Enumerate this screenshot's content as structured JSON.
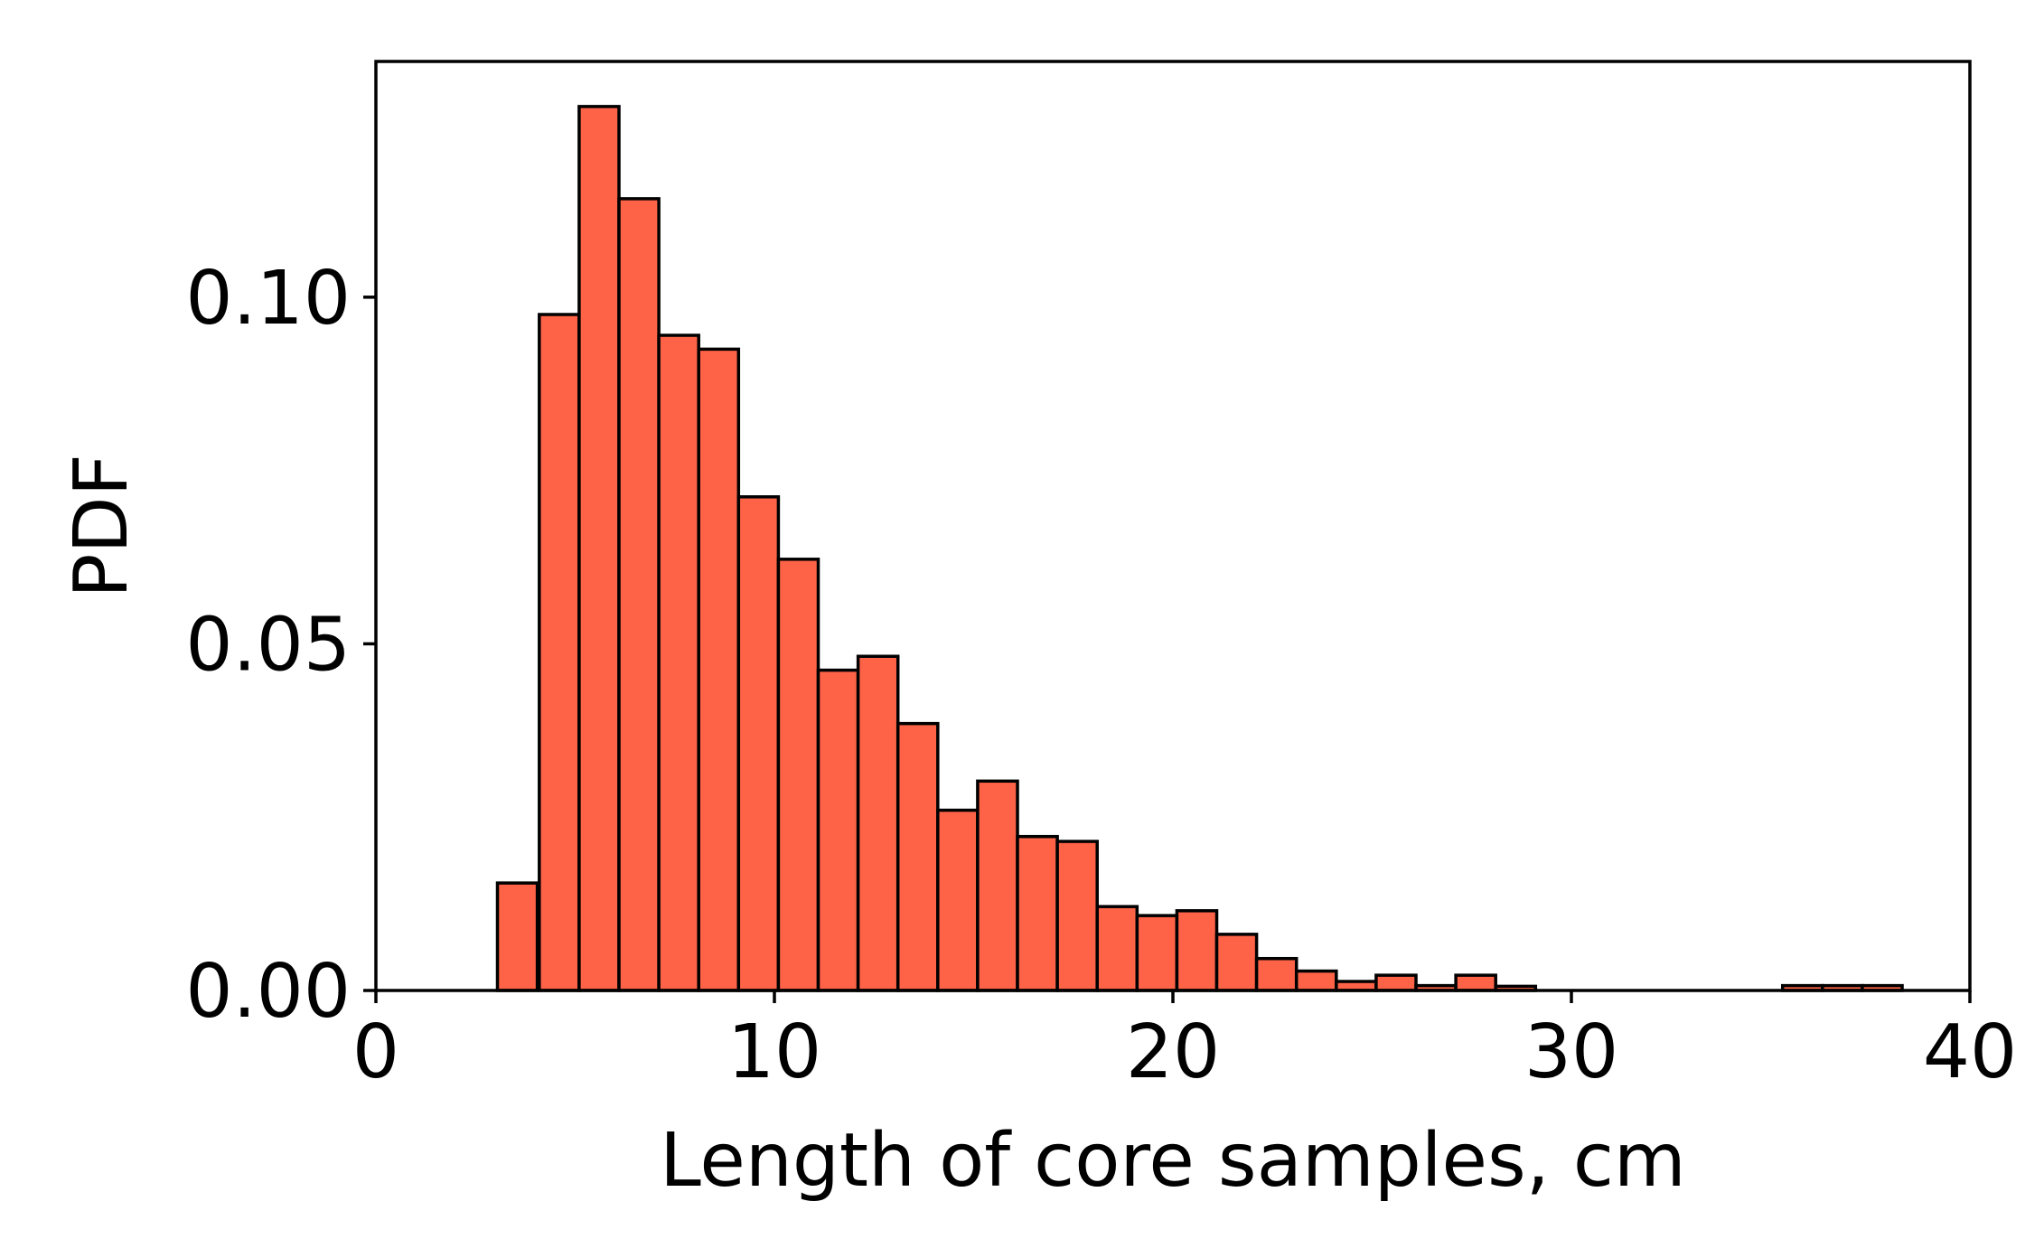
{
  "chart_data": {
    "type": "bar",
    "subtype": "histogram",
    "title": "",
    "xlabel": "Length of core samples, cm",
    "ylabel": "PDF",
    "xlim": [
      0,
      40
    ],
    "ylim": [
      0,
      0.134
    ],
    "xticks": [
      0,
      10,
      20,
      30,
      40
    ],
    "xtick_labels": [
      "0",
      "10",
      "20",
      "30",
      "40"
    ],
    "yticks": [
      0.0,
      0.05,
      0.1
    ],
    "ytick_labels": [
      "0.00",
      "0.05",
      "0.10"
    ],
    "bin_width": 1.0,
    "bins": [
      {
        "start": 3.05,
        "value": 0.0155
      },
      {
        "start": 4.1,
        "value": 0.0975
      },
      {
        "start": 5.1,
        "value": 0.1275
      },
      {
        "start": 6.1,
        "value": 0.1142
      },
      {
        "start": 7.1,
        "value": 0.0945
      },
      {
        "start": 8.1,
        "value": 0.0925
      },
      {
        "start": 9.1,
        "value": 0.0712
      },
      {
        "start": 10.1,
        "value": 0.0622
      },
      {
        "start": 11.1,
        "value": 0.0462
      },
      {
        "start": 12.1,
        "value": 0.0482
      },
      {
        "start": 13.1,
        "value": 0.0385
      },
      {
        "start": 14.1,
        "value": 0.026
      },
      {
        "start": 15.1,
        "value": 0.0302
      },
      {
        "start": 16.1,
        "value": 0.0222
      },
      {
        "start": 17.1,
        "value": 0.0215
      },
      {
        "start": 18.1,
        "value": 0.0121
      },
      {
        "start": 19.1,
        "value": 0.0108
      },
      {
        "start": 20.1,
        "value": 0.0115
      },
      {
        "start": 21.1,
        "value": 0.0081
      },
      {
        "start": 22.1,
        "value": 0.0046
      },
      {
        "start": 23.1,
        "value": 0.0028
      },
      {
        "start": 24.1,
        "value": 0.0013
      },
      {
        "start": 25.1,
        "value": 0.0022
      },
      {
        "start": 26.1,
        "value": 0.0007
      },
      {
        "start": 27.1,
        "value": 0.0022
      },
      {
        "start": 28.1,
        "value": 0.0006
      },
      {
        "start": 35.3,
        "value": 0.0007
      },
      {
        "start": 36.3,
        "value": 0.0007
      },
      {
        "start": 37.3,
        "value": 0.0007
      }
    ],
    "bar_color": "#FF6347",
    "edge_color": "#000000",
    "grid": false,
    "legend": null
  }
}
